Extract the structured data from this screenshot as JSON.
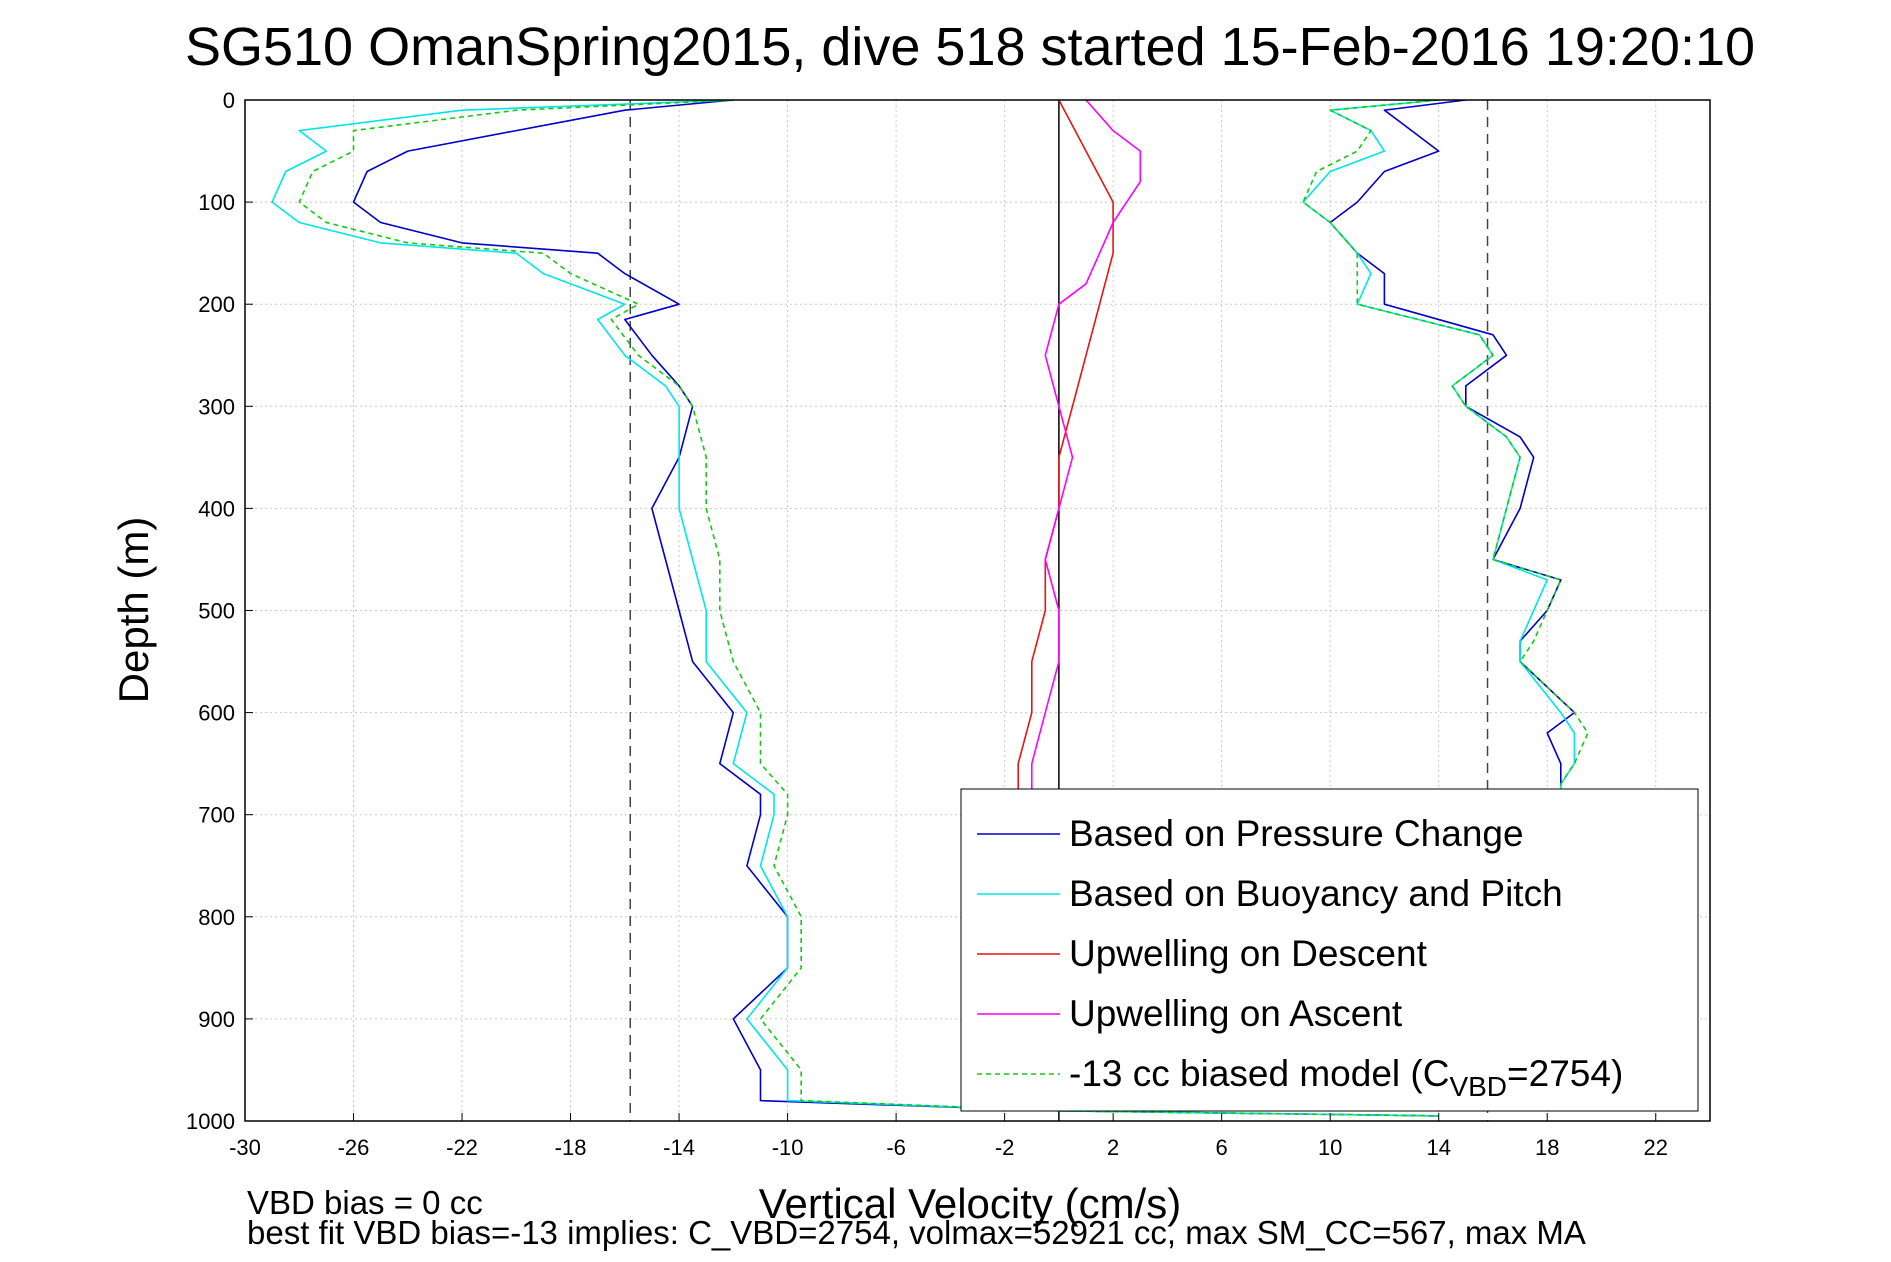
{
  "chart_data": {
    "type": "line",
    "title": "SG510 OmanSpring2015, dive 518 started 15-Feb-2016 19:20:10",
    "xlabel": "Vertical Velocity (cm/s)",
    "ylabel": "Depth (m)",
    "xlim": [
      -30,
      24
    ],
    "ylim": [
      0,
      1000
    ],
    "y_reversed": true,
    "grid": true,
    "legend_position": "bottom-right",
    "xticks": [
      -30,
      -26,
      -22,
      -18,
      -14,
      -10,
      -6,
      -2,
      2,
      6,
      10,
      14,
      18,
      22
    ],
    "yticks": [
      0,
      100,
      200,
      300,
      400,
      500,
      600,
      700,
      800,
      900,
      1000
    ],
    "reference_lines": [
      {
        "x": -15.8,
        "style": "dashed",
        "color": "#444444"
      },
      {
        "x": 0,
        "style": "solid",
        "color": "#000000"
      },
      {
        "x": 15.8,
        "style": "dashed",
        "color": "#444444"
      }
    ],
    "series": [
      {
        "name": "Based on Pressure Change",
        "color": "#0000c8",
        "segments": [
          {
            "depth": [
              0,
              10,
              30,
              50,
              70,
              100,
              120,
              140,
              150,
              170,
              200,
              215,
              250,
              280,
              300,
              350,
              400,
              450,
              500,
              550,
              600,
              650,
              680,
              700,
              750,
              800,
              850,
              900,
              950,
              980,
              990,
              995
            ],
            "velocity": [
              -12,
              -16,
              -20,
              -24,
              -25.5,
              -26,
              -25,
              -22,
              -17,
              -16,
              -14,
              -16,
              -15,
              -14,
              -13.5,
              -14,
              -15,
              -14.5,
              -14,
              -13.5,
              -12,
              -12.5,
              -11,
              -11,
              -11.5,
              -10,
              -10,
              -12,
              -11,
              -11,
              0,
              14
            ]
          },
          {
            "depth": [
              0,
              10,
              30,
              50,
              70,
              100,
              120,
              150,
              170,
              200,
              230,
              250,
              280,
              300,
              330,
              350,
              400,
              450,
              470,
              500,
              530,
              550,
              600,
              620,
              650,
              670,
              690
            ],
            "velocity": [
              15,
              12,
              13,
              14,
              12,
              11,
              10,
              11,
              12,
              12,
              16,
              16.5,
              15,
              15,
              17,
              17.5,
              17,
              16,
              18.5,
              18,
              17,
              17,
              19,
              18,
              18.5,
              18.5,
              18.5
            ]
          }
        ]
      },
      {
        "name": "Based on Buoyancy and Pitch",
        "color": "#00e6e6",
        "segments": [
          {
            "depth": [
              0,
              10,
              30,
              50,
              70,
              100,
              120,
              140,
              150,
              170,
              200,
              215,
              250,
              280,
              300,
              350,
              400,
              450,
              500,
              550,
              600,
              650,
              680,
              700,
              750,
              800,
              850,
              900,
              950,
              980,
              990,
              995
            ],
            "velocity": [
              -12,
              -22,
              -28,
              -27,
              -28.5,
              -29,
              -28,
              -25,
              -20,
              -19,
              -16,
              -17,
              -16,
              -14.5,
              -14,
              -14,
              -14,
              -13.5,
              -13,
              -13,
              -11.5,
              -12,
              -10.5,
              -10.5,
              -11,
              -10,
              -10,
              -11.5,
              -10,
              -10,
              0,
              14
            ]
          },
          {
            "depth": [
              0,
              10,
              30,
              50,
              70,
              100,
              120,
              150,
              170,
              200,
              230,
              250,
              280,
              300,
              330,
              350,
              400,
              450,
              470,
              500,
              530,
              550,
              600,
              620,
              650,
              670,
              690
            ],
            "velocity": [
              14,
              10,
              11.5,
              12,
              10,
              9,
              10,
              11,
              11.5,
              11,
              15.5,
              16,
              14.5,
              15,
              16.5,
              17,
              16.5,
              16,
              18,
              17.5,
              17,
              17,
              18.5,
              19,
              19,
              18.5,
              18.5
            ]
          }
        ]
      },
      {
        "name": "Upwelling on Descent",
        "color": "#e61414",
        "segments": [
          {
            "depth": [
              0,
              50,
              100,
              150,
              200,
              250,
              300,
              350,
              400,
              450,
              500,
              550,
              600,
              650,
              690
            ],
            "velocity": [
              0,
              1,
              2,
              2,
              1.5,
              1,
              0.5,
              0,
              0,
              -0.5,
              -0.5,
              -1,
              -1,
              -1.5,
              -1.5
            ]
          }
        ]
      },
      {
        "name": "Upwelling on Ascent",
        "color": "#ff00ff",
        "segments": [
          {
            "depth": [
              0,
              30,
              50,
              80,
              100,
              120,
              150,
              180,
              200,
              250,
              300,
              350,
              400,
              450,
              500,
              550,
              600,
              650,
              690
            ],
            "velocity": [
              1,
              2,
              3,
              3,
              2.5,
              2,
              1.5,
              1,
              0,
              -0.5,
              0,
              0.5,
              0,
              -0.5,
              0,
              0,
              -0.5,
              -1,
              -1
            ]
          }
        ]
      },
      {
        "name": "-13 cc biased model (CVBD=2754)",
        "color": "#14c814",
        "segments": [
          {
            "depth": [
              0,
              10,
              30,
              50,
              70,
              100,
              120,
              140,
              150,
              170,
              200,
              215,
              250,
              280,
              300,
              350,
              400,
              450,
              500,
              550,
              600,
              650,
              680,
              700,
              750,
              800,
              850,
              900,
              950,
              980,
              990,
              995
            ],
            "velocity": [
              -12,
              -20,
              -26,
              -26,
              -27.5,
              -28,
              -27,
              -24,
              -19,
              -18,
              -15.5,
              -16.5,
              -15.5,
              -14,
              -13.5,
              -13,
              -13,
              -12.5,
              -12.5,
              -12,
              -11,
              -11,
              -10,
              -10,
              -10.5,
              -9.5,
              -9.5,
              -11,
              -9.5,
              -9.5,
              0,
              14
            ]
          },
          {
            "depth": [
              0,
              10,
              30,
              50,
              70,
              100,
              120,
              150,
              170,
              200,
              230,
              250,
              280,
              300,
              330,
              350,
              400,
              450,
              470,
              500,
              530,
              550,
              600,
              620,
              650,
              670,
              690
            ],
            "velocity": [
              14,
              10,
              11.5,
              11,
              9.5,
              9,
              10,
              11,
              11,
              11,
              15.5,
              16,
              14.5,
              15,
              16.5,
              17,
              16.5,
              16,
              18.5,
              18,
              17.5,
              17,
              19,
              19.5,
              19,
              18.5,
              18.5
            ]
          }
        ]
      }
    ],
    "legend": {
      "entries": [
        {
          "label": "Based on Pressure Change",
          "color": "#0000c8",
          "dash": "none"
        },
        {
          "label": "Based on Buoyancy and Pitch",
          "color": "#00e6e6",
          "dash": "none"
        },
        {
          "label": "Upwelling on Descent",
          "color": "#e61414",
          "dash": "none"
        },
        {
          "label": "Upwelling on Ascent",
          "color": "#ff00ff",
          "dash": "none"
        },
        {
          "label_prefix": "-13 cc biased model (C",
          "label_sub": "VBD",
          "label_suffix": "=2754)",
          "color": "#14c814",
          "dash": "5 4"
        }
      ]
    }
  },
  "footnotes": {
    "line1": "VBD bias = 0 cc",
    "line2": "best fit VBD bias=-13 implies: C_VBD=2754, volmax=52921 cc, max SM_CC=567, max MA"
  }
}
